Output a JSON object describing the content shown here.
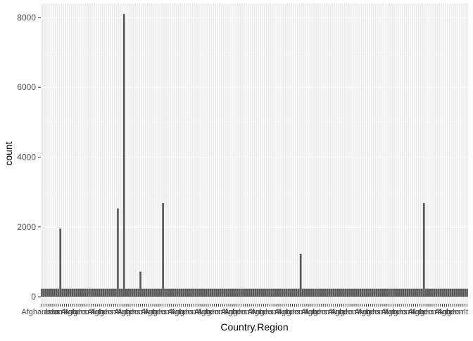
{
  "chart_data": {
    "type": "bar",
    "xlabel": "Country.Region",
    "ylabel": "count",
    "ylim": [
      -200,
      8400
    ],
    "yticks": [
      0,
      2000,
      4000,
      6000,
      8000
    ],
    "grid": true,
    "legend": "none",
    "category_count": 208,
    "base_count": 230,
    "tall_bars": [
      {
        "index": 9,
        "value": 1950
      },
      {
        "index": 37,
        "value": 2530
      },
      {
        "index": 40,
        "value": 8100
      },
      {
        "index": 48,
        "value": 720
      },
      {
        "index": 59,
        "value": 2680
      },
      {
        "index": 126,
        "value": 1230
      },
      {
        "index": 186,
        "value": 2680
      }
    ],
    "first_category_label": "Afghanistan",
    "visible_category_fragments": [
      "Afgh",
      "Ang",
      "a",
      "b",
      "c",
      "e",
      "h",
      "o",
      "s",
      "n",
      "r",
      "l",
      "t"
    ],
    "colors": {
      "panel": "#ebebeb",
      "grid_major": "#ffffff",
      "grid_minor": "#f5f5f5",
      "bar": "#595959",
      "axis_text": "#4d4d4d",
      "tick": "#333333"
    }
  }
}
